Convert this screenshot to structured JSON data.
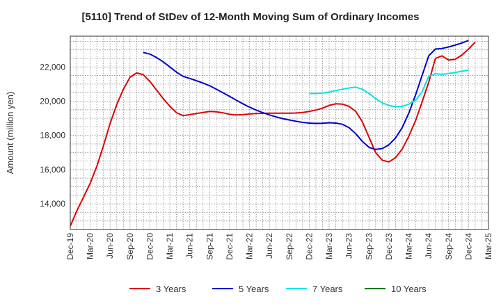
{
  "chart_data": {
    "type": "line",
    "title": "[5110]  Trend of StDev of 12-Month Moving Sum of Ordinary Incomes",
    "xlabel": "",
    "ylabel": "Amount (million yen)",
    "ylim": [
      12500,
      23800
    ],
    "yticks": [
      14000,
      16000,
      18000,
      20000,
      22000
    ],
    "ytick_labels": [
      "14,000",
      "16,000",
      "18,000",
      "20,000",
      "22,000"
    ],
    "xticks": [
      "Dec-19",
      "Mar-20",
      "Jun-20",
      "Sep-20",
      "Dec-20",
      "Mar-21",
      "Jun-21",
      "Sep-21",
      "Dec-21",
      "Mar-22",
      "Jun-22",
      "Sep-22",
      "Dec-22",
      "Mar-23",
      "Jun-23",
      "Sep-23",
      "Dec-23",
      "Mar-24",
      "Jun-24",
      "Sep-24",
      "Dec-24",
      "Mar-25"
    ],
    "x_range": [
      0,
      63
    ],
    "grid": true,
    "legend_position": "bottom",
    "series": [
      {
        "name": "3 Years",
        "color": "#dd0000",
        "x_start": 0,
        "values": [
          12700,
          13600,
          14400,
          15200,
          16200,
          17400,
          18700,
          19800,
          20700,
          21400,
          21650,
          21550,
          21150,
          20650,
          20150,
          19700,
          19330,
          19150,
          19220,
          19280,
          19340,
          19400,
          19380,
          19320,
          19230,
          19200,
          19210,
          19250,
          19280,
          19290,
          19300,
          19300,
          19300,
          19300,
          19310,
          19340,
          19400,
          19480,
          19590,
          19750,
          19850,
          19830,
          19700,
          19400,
          18800,
          17900,
          17000,
          16550,
          16450,
          16700,
          17200,
          17950,
          18850,
          19950,
          21100,
          22500,
          22650,
          22400,
          22450,
          22700,
          23050,
          23450
        ]
      },
      {
        "name": "5 Years",
        "color": "#0000cc",
        "x_start": 11,
        "values": [
          22850,
          22750,
          22550,
          22300,
          22000,
          21700,
          21450,
          21330,
          21200,
          21060,
          20900,
          20700,
          20490,
          20280,
          20060,
          19850,
          19650,
          19480,
          19330,
          19200,
          19080,
          18980,
          18900,
          18830,
          18760,
          18720,
          18700,
          18710,
          18740,
          18720,
          18650,
          18450,
          18100,
          17650,
          17300,
          17180,
          17230,
          17450,
          17850,
          18450,
          19300,
          20350,
          21500,
          22650,
          23050,
          23080,
          23170,
          23280,
          23400,
          23550
        ]
      },
      {
        "name": "7 Years",
        "color": "#00e5e5",
        "x_start": 36,
        "values": [
          20450,
          20450,
          20480,
          20530,
          20620,
          20700,
          20770,
          20820,
          20700,
          20450,
          20150,
          19900,
          19750,
          19680,
          19700,
          19820,
          20050,
          20550,
          21450,
          21600,
          21570,
          21620,
          21680,
          21750,
          21820
        ]
      },
      {
        "name": "10 Years",
        "color": "#007700",
        "x_start": 0,
        "values": []
      }
    ]
  }
}
